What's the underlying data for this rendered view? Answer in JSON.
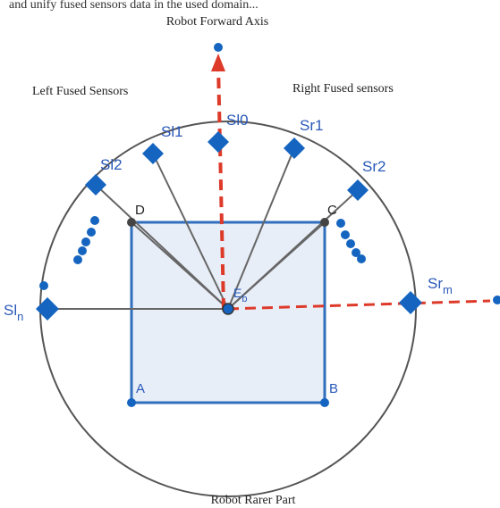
{
  "diagram": {
    "top_fragment_text": "and unify fused sensors data in the used domain...",
    "labels": {
      "forward_axis": "Robot Forward Axis",
      "left_group": "Left Fused Sensors",
      "right_group": "Right Fused sensors",
      "rear_part": "Robot Rarer Part"
    },
    "sensors": {
      "sl0": "Sl0",
      "sl1": "Sl1",
      "sl2": "Sl2",
      "sln_base": "Sl",
      "sln_sub": "n",
      "sr1": "Sr1",
      "sr2": "Sr2",
      "srm_base": "Sr",
      "srm_sub": "m"
    },
    "corners": {
      "a": "A",
      "b": "B",
      "c": "C",
      "d": "D"
    },
    "center": {
      "base": "E",
      "sub": "b"
    },
    "colors": {
      "outline": "#555555",
      "sensor_blue": "#1565c0",
      "square_fill": "#e8eef8",
      "square_stroke": "#2f6fbd",
      "axis_red": "#dd3a2a",
      "text_blue": "#2a59b8",
      "dark_point": "#444444"
    }
  }
}
